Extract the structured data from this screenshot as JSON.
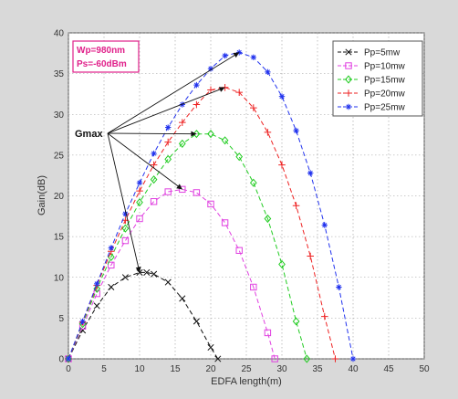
{
  "chart_data": {
    "type": "line",
    "xlabel": "EDFA length(m)",
    "ylabel": "Gain(dB)",
    "xlim": [
      0,
      50
    ],
    "ylim": [
      0,
      40
    ],
    "xticks": [
      0,
      5,
      10,
      15,
      20,
      25,
      30,
      35,
      40,
      45,
      50
    ],
    "yticks": [
      0,
      5,
      10,
      15,
      20,
      25,
      30,
      35,
      40
    ],
    "grid": true,
    "legend_position": "top-right",
    "parameter_box": {
      "line1": "Wp=980nm",
      "line2": "Ps=-60dBm"
    },
    "annotation": {
      "text": "Gmax"
    },
    "series": [
      {
        "name": "Pp=5mw",
        "color": "#111111",
        "marker": "x",
        "x": [
          0,
          2,
          4,
          6,
          8,
          10,
          11,
          12,
          14,
          16,
          18,
          20,
          21
        ],
        "values": [
          0,
          3.5,
          6.5,
          8.8,
          10.0,
          10.6,
          10.6,
          10.4,
          9.4,
          7.4,
          4.6,
          1.4,
          0
        ]
      },
      {
        "name": "Pp=10mw",
        "color": "#e040e0",
        "marker": "square",
        "x": [
          0,
          2,
          4,
          6,
          8,
          10,
          12,
          14,
          16,
          18,
          20,
          22,
          24,
          26,
          28,
          29
        ],
        "values": [
          0,
          4.0,
          8.0,
          11.5,
          14.5,
          17.2,
          19.3,
          20.5,
          20.8,
          20.4,
          19.0,
          16.7,
          13.3,
          8.8,
          3.2,
          0
        ]
      },
      {
        "name": "Pp=15mw",
        "color": "#22cc22",
        "marker": "diamond",
        "x": [
          0,
          2,
          4,
          6,
          8,
          10,
          12,
          14,
          16,
          18,
          20,
          22,
          24,
          26,
          28,
          30,
          32,
          33.5
        ],
        "values": [
          0,
          4.3,
          8.6,
          12.5,
          16.0,
          19.2,
          22.0,
          24.5,
          26.4,
          27.6,
          27.6,
          26.8,
          24.8,
          21.6,
          17.2,
          11.6,
          4.6,
          0
        ]
      },
      {
        "name": "Pp=20mw",
        "color": "#ee2222",
        "marker": "plus",
        "x": [
          0,
          2,
          4,
          6,
          8,
          10,
          12,
          14,
          16,
          18,
          20,
          22,
          24,
          26,
          28,
          30,
          32,
          34,
          36,
          37.5
        ],
        "values": [
          0,
          4.5,
          9.0,
          13.2,
          17.0,
          20.6,
          23.8,
          26.6,
          29.0,
          31.2,
          33.0,
          33.3,
          32.7,
          30.8,
          27.8,
          23.8,
          18.8,
          12.6,
          5.2,
          0
        ]
      },
      {
        "name": "Pp=25mw",
        "color": "#2233ee",
        "marker": "star",
        "x": [
          0,
          2,
          4,
          6,
          8,
          10,
          12,
          14,
          16,
          18,
          20,
          22,
          24,
          26,
          28,
          30,
          32,
          34,
          36,
          38,
          40
        ],
        "values": [
          0,
          4.6,
          9.2,
          13.6,
          17.8,
          21.6,
          25.2,
          28.4,
          31.2,
          33.6,
          35.6,
          37.2,
          37.6,
          37.0,
          35.2,
          32.2,
          28.0,
          22.8,
          16.4,
          8.8,
          0
        ]
      }
    ]
  }
}
